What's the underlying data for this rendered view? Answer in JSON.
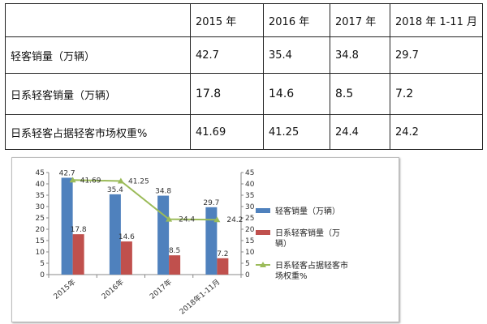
{
  "table": {
    "header": [
      "",
      "2015 年",
      "2016 年",
      "2017 年",
      "2018 年 1-11 月"
    ],
    "rows": [
      {
        "label": "轻客销量（万辆）",
        "values": [
          "42.7",
          "35.4",
          "34.8",
          "29.7"
        ]
      },
      {
        "label": "日系轻客销量（万辆）",
        "values": [
          "17.8",
          "14.6",
          "8.5",
          "7.2"
        ]
      },
      {
        "label": "日系轻客占据轻客市场权重%",
        "values": [
          "41.69",
          "41.25",
          "24.4",
          "24.2"
        ]
      }
    ]
  },
  "chart_data": {
    "type": "bar",
    "categories": [
      "2015年",
      "2016年",
      "2017年",
      "2018年1-11月"
    ],
    "series": [
      {
        "name": "轻客销量（万辆）",
        "type": "bar",
        "values": [
          42.7,
          35.4,
          34.8,
          29.7
        ],
        "color": "#4f81bd",
        "labels": [
          "42.7",
          "35.4",
          "34.8",
          "29.7"
        ]
      },
      {
        "name": "日系轻客销量（万辆）",
        "type": "bar",
        "values": [
          17.8,
          14.6,
          8.5,
          7.2
        ],
        "color": "#c0504d",
        "labels": [
          "17.8",
          "14.6",
          "8.5",
          "7.2"
        ]
      },
      {
        "name": "日系轻客占据轻客市场权重%",
        "type": "line",
        "axis": "secondary",
        "values": [
          41.69,
          41.25,
          24.4,
          24.2
        ],
        "color": "#9bbb59",
        "labels": [
          "41.69",
          "41.25",
          "24.4",
          "24.2"
        ]
      }
    ],
    "ylim": [
      0,
      45
    ],
    "y2lim": [
      0,
      45
    ],
    "yticks": [
      "0",
      "5",
      "10",
      "15",
      "20",
      "25",
      "30",
      "35",
      "40",
      "45"
    ],
    "y2ticks": [
      "0",
      "5",
      "10",
      "15",
      "20",
      "25",
      "30",
      "35",
      "40",
      "45"
    ],
    "grid": false,
    "legend": "right",
    "legend_lines": [
      [
        "轻客销量（万辆）"
      ],
      [
        "日系轻客销量（万",
        "辆）"
      ],
      [
        "日系轻客占据轻客市",
        "场权重%"
      ]
    ]
  }
}
